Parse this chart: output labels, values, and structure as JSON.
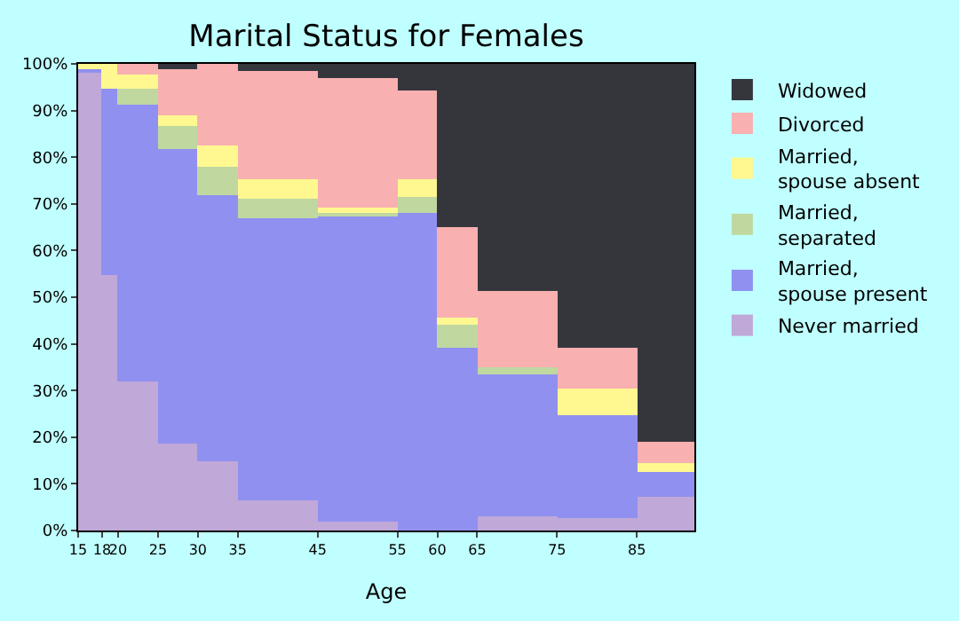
{
  "chart_data": {
    "type": "bar",
    "stacked": true,
    "title": "Marital Status for Females",
    "xlabel": "Age",
    "x": [
      16.5,
      19,
      22.5,
      27.5,
      32.5,
      40,
      50,
      57.5,
      62.5,
      70,
      80,
      88.6
    ],
    "xlim": [
      15,
      92.2
    ],
    "xticks": [
      15,
      18,
      20,
      25,
      30,
      35,
      45,
      55,
      60,
      65,
      75,
      85
    ],
    "ylim": [
      0,
      100
    ],
    "yticks": [
      {
        "value": 0,
        "label": "0%"
      },
      {
        "value": 10,
        "label": "10%"
      },
      {
        "value": 20,
        "label": "20%"
      },
      {
        "value": 30,
        "label": "30%"
      },
      {
        "value": 40,
        "label": "40%"
      },
      {
        "value": 50,
        "label": "50%"
      },
      {
        "value": 60,
        "label": "60%"
      },
      {
        "value": 70,
        "label": "70%"
      },
      {
        "value": 80,
        "label": "80%"
      },
      {
        "value": 90,
        "label": "90%"
      },
      {
        "value": 100,
        "label": "100%"
      }
    ],
    "legend": "right",
    "series": [
      {
        "name": "Never married",
        "color": "#c0a8d8",
        "values": [
          98,
          54.6,
          32,
          18.7,
          14.7,
          6.6,
          1.8,
          0,
          0,
          2.9,
          2.6,
          7.3
        ]
      },
      {
        "name": "Married, spouse present",
        "color": "#9090f0",
        "values": [
          1,
          40,
          59.3,
          63.1,
          57.2,
          60.5,
          65.7,
          68.2,
          39.2,
          30.5,
          22.3,
          5.2
        ]
      },
      {
        "name": "Married, separated",
        "color": "#c0d8a0",
        "values": [
          0,
          0,
          3.3,
          4.9,
          6.2,
          4,
          0.7,
          3.3,
          4.8,
          1.4,
          0,
          0
        ]
      },
      {
        "name": "Married, spouse absent",
        "color": "#fff890",
        "values": [
          1,
          5.4,
          3,
          2.2,
          4.4,
          4.1,
          1.1,
          3.7,
          1.8,
          0,
          5.5,
          1.8
        ]
      },
      {
        "name": "Divorced",
        "color": "#f8b0b0",
        "values": [
          0,
          0,
          2.4,
          9.8,
          17.5,
          23.1,
          27.5,
          19.1,
          19.1,
          16.5,
          8.8,
          4.8
        ]
      },
      {
        "name": "Widowed",
        "color": "#35363c",
        "values": [
          0,
          0,
          0,
          1.3,
          0,
          1.7,
          3.2,
          5.7,
          35.1,
          48.7,
          60.8,
          80.9
        ]
      }
    ]
  }
}
